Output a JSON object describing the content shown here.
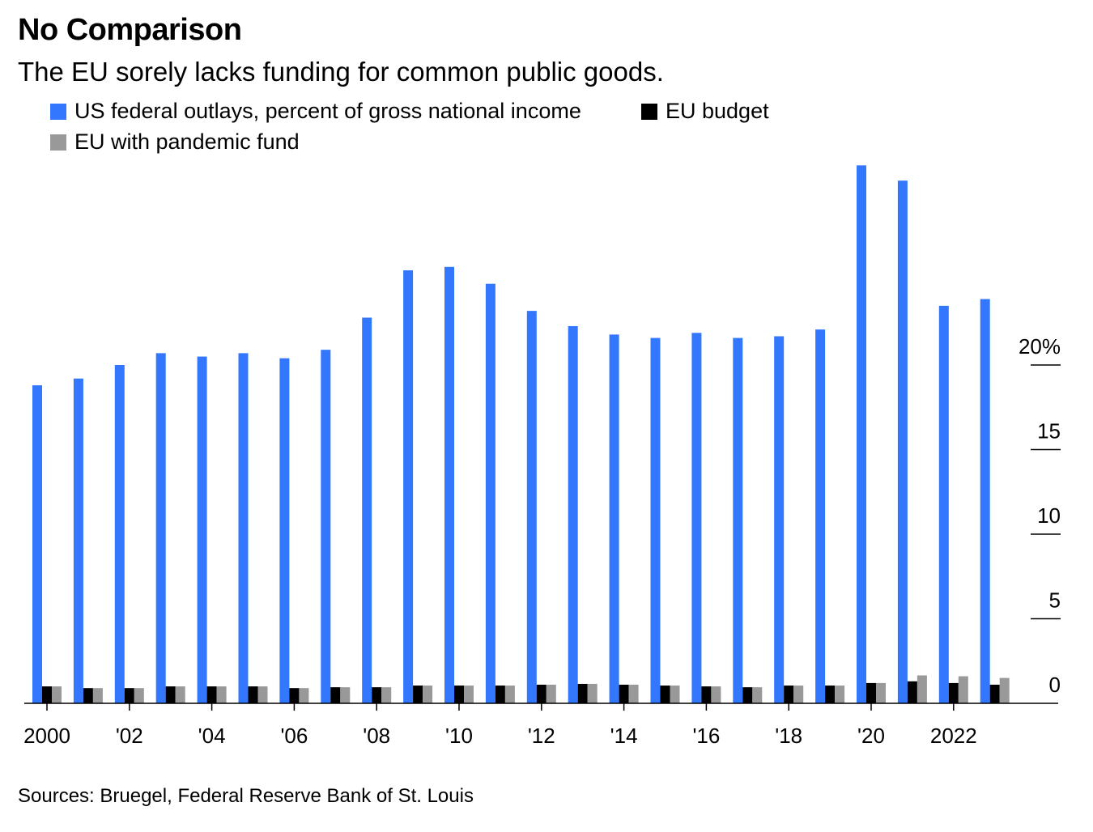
{
  "title": "No Comparison",
  "subtitle": "The EU sorely lacks funding for common public goods.",
  "source": "Sources: Bruegel, Federal Reserve Bank of St. Louis",
  "chart_data": {
    "type": "bar",
    "legend_placement": "top-left",
    "grid": false,
    "x": [
      2000,
      2001,
      2002,
      2003,
      2004,
      2005,
      2006,
      2007,
      2008,
      2009,
      2010,
      2011,
      2012,
      2013,
      2014,
      2015,
      2016,
      2017,
      2018,
      2019,
      2020,
      2021,
      2022,
      2023
    ],
    "x_tick_labels": [
      {
        "year": 2000,
        "label": "2000"
      },
      {
        "year": 2002,
        "label": "'02"
      },
      {
        "year": 2004,
        "label": "'04"
      },
      {
        "year": 2006,
        "label": "'06"
      },
      {
        "year": 2008,
        "label": "'08"
      },
      {
        "year": 2010,
        "label": "'10"
      },
      {
        "year": 2012,
        "label": "'12"
      },
      {
        "year": 2014,
        "label": "'14"
      },
      {
        "year": 2016,
        "label": "'16"
      },
      {
        "year": 2018,
        "label": "'18"
      },
      {
        "year": 2020,
        "label": "'20"
      },
      {
        "year": 2022,
        "label": "2022"
      }
    ],
    "y_ticks": [
      {
        "value": 0,
        "label": "0"
      },
      {
        "value": 5,
        "label": "5"
      },
      {
        "value": 10,
        "label": "10"
      },
      {
        "value": 15,
        "label": "15"
      },
      {
        "value": 20,
        "label": "20%"
      }
    ],
    "ylim": [
      0,
      32
    ],
    "y_axis_side": "right",
    "series": [
      {
        "name": "US federal outlays, percent of gross national income",
        "color": "#3377ff",
        "values": [
          18.8,
          19.2,
          20.0,
          20.7,
          20.5,
          20.7,
          20.4,
          20.9,
          22.8,
          25.6,
          25.8,
          24.8,
          23.2,
          22.3,
          21.8,
          21.6,
          21.9,
          21.6,
          21.7,
          22.1,
          31.8,
          30.9,
          23.5,
          23.9
        ]
      },
      {
        "name": "EU budget",
        "color": "#000000",
        "values": [
          1.0,
          0.9,
          0.9,
          1.0,
          1.0,
          1.0,
          0.9,
          0.95,
          0.95,
          1.05,
          1.05,
          1.05,
          1.1,
          1.15,
          1.1,
          1.05,
          1.0,
          0.95,
          1.05,
          1.05,
          1.2,
          1.3,
          1.2,
          1.1
        ]
      },
      {
        "name": "EU with pandemic fund",
        "color": "#999999",
        "values": [
          1.0,
          0.9,
          0.9,
          1.0,
          1.0,
          1.0,
          0.9,
          0.95,
          0.95,
          1.05,
          1.05,
          1.05,
          1.1,
          1.15,
          1.1,
          1.05,
          1.0,
          0.95,
          1.05,
          1.05,
          1.2,
          1.65,
          1.6,
          1.5
        ]
      }
    ]
  }
}
